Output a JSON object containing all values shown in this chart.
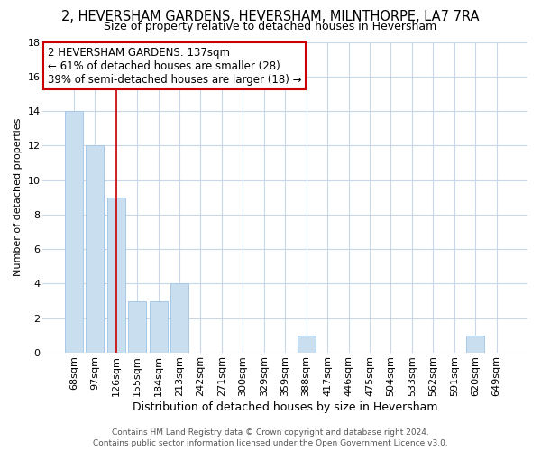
{
  "title": "2, HEVERSHAM GARDENS, HEVERSHAM, MILNTHORPE, LA7 7RA",
  "subtitle": "Size of property relative to detached houses in Heversham",
  "xlabel": "Distribution of detached houses by size in Heversham",
  "ylabel": "Number of detached properties",
  "bar_color": "#c9dff0",
  "bar_edge_color": "#a8c8e8",
  "annotation_color": "#cc0000",
  "categories": [
    "68sqm",
    "97sqm",
    "126sqm",
    "155sqm",
    "184sqm",
    "213sqm",
    "242sqm",
    "271sqm",
    "300sqm",
    "329sqm",
    "359sqm",
    "388sqm",
    "417sqm",
    "446sqm",
    "475sqm",
    "504sqm",
    "533sqm",
    "562sqm",
    "591sqm",
    "620sqm",
    "649sqm"
  ],
  "values": [
    14,
    12,
    9,
    3,
    3,
    4,
    0,
    0,
    0,
    0,
    0,
    1,
    0,
    0,
    0,
    0,
    0,
    0,
    0,
    1,
    0
  ],
  "property_line_index": 2,
  "annotation_text": "2 HEVERSHAM GARDENS: 137sqm\n← 61% of detached houses are smaller (28)\n39% of semi-detached houses are larger (18) →",
  "ylim": [
    0,
    18
  ],
  "yticks": [
    0,
    2,
    4,
    6,
    8,
    10,
    12,
    14,
    16,
    18
  ],
  "footer_line1": "Contains HM Land Registry data © Crown copyright and database right 2024.",
  "footer_line2": "Contains public sector information licensed under the Open Government Licence v3.0.",
  "background_color": "#ffffff",
  "grid_color": "#c8d8e8",
  "title_fontsize": 10.5,
  "subtitle_fontsize": 9,
  "ylabel_fontsize": 8,
  "xlabel_fontsize": 9,
  "tick_fontsize": 8,
  "annotation_fontsize": 8.5,
  "footer_fontsize": 6.5
}
